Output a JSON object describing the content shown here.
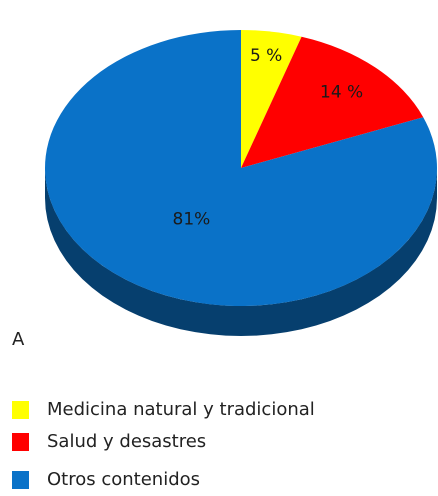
{
  "chart_data": {
    "type": "pie",
    "categories": [
      "Medicina natural y tradicional",
      "Salud y desastres",
      "Otros contenidos"
    ],
    "values": [
      5,
      14,
      81
    ],
    "value_labels": [
      "5 %",
      "14 %",
      "81%"
    ],
    "colors": [
      "#ffff00",
      "#ff0000",
      "#0a72c8"
    ],
    "annotation": "A"
  }
}
